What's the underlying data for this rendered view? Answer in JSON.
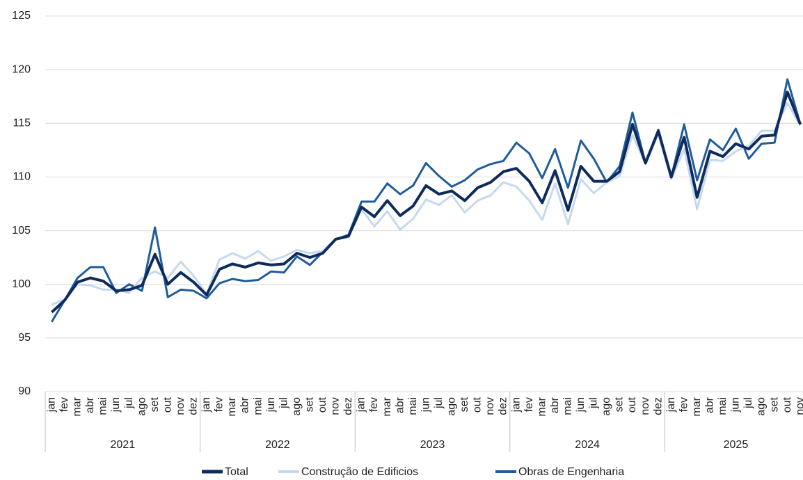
{
  "chart_data": {
    "type": "line",
    "groups": [
      {
        "label": "2021",
        "categories": [
          "jan",
          "fev",
          "mar",
          "abr",
          "mai",
          "jun",
          "jul",
          "ago",
          "set",
          "out",
          "nov",
          "dez"
        ]
      },
      {
        "label": "2022",
        "categories": [
          "jan",
          "fev",
          "mar",
          "abr",
          "mai",
          "jun",
          "jul",
          "ago",
          "set",
          "out",
          "nov",
          "dez"
        ]
      },
      {
        "label": "2023",
        "categories": [
          "jan",
          "fev",
          "mar",
          "abr",
          "mai",
          "jun",
          "jul",
          "ago",
          "set",
          "out",
          "nov",
          "dez"
        ]
      },
      {
        "label": "2024",
        "categories": [
          "jan",
          "fev",
          "mar",
          "abr",
          "mai",
          "jun",
          "jul",
          "ago",
          "set",
          "out",
          "nov",
          "dez"
        ]
      },
      {
        "label": "2025",
        "categories": [
          "jan",
          "fev",
          "mar",
          "abr",
          "mai",
          "jun",
          "jul",
          "ago",
          "set",
          "out",
          "nov"
        ]
      }
    ],
    "series": [
      {
        "name": "Total",
        "color": "#0f2b5e",
        "width": 4,
        "values": [
          97.4,
          98.5,
          100.2,
          100.6,
          100.3,
          99.4,
          99.5,
          99.9,
          102.8,
          100.0,
          101.1,
          100.2,
          99.0,
          101.4,
          101.9,
          101.6,
          102.0,
          101.8,
          101.9,
          102.9,
          102.5,
          102.9,
          104.2,
          104.5,
          107.2,
          106.3,
          107.8,
          106.4,
          107.3,
          109.2,
          108.4,
          108.7,
          107.8,
          109.0,
          109.5,
          110.5,
          110.8,
          109.6,
          107.6,
          110.6,
          106.9,
          111.0,
          109.6,
          109.6,
          110.5,
          114.9,
          111.3,
          114.3,
          110.0,
          113.7,
          108.1,
          112.4,
          111.9,
          113.1,
          112.6,
          113.8,
          113.9,
          117.9,
          114.9
        ]
      },
      {
        "name": "Construção de Edificios",
        "color": "#c5d9ee",
        "width": 3,
        "values": [
          98.1,
          98.6,
          100.0,
          99.9,
          99.5,
          99.5,
          99.2,
          100.6,
          101.2,
          100.6,
          102.1,
          100.8,
          99.1,
          102.3,
          102.9,
          102.4,
          103.1,
          102.2,
          102.6,
          103.2,
          102.9,
          103.1,
          104.2,
          104.4,
          107.0,
          105.4,
          106.8,
          105.1,
          106.1,
          107.9,
          107.4,
          108.3,
          106.7,
          107.8,
          108.3,
          109.5,
          109.1,
          107.8,
          106.0,
          109.4,
          105.6,
          109.8,
          108.5,
          109.5,
          110.1,
          113.9,
          111.2,
          114.0,
          109.8,
          112.6,
          107.0,
          111.6,
          111.5,
          112.4,
          112.9,
          114.3,
          114.3,
          116.9,
          114.8
        ]
      },
      {
        "name": "Obras de Engenharia",
        "color": "#1f5c99",
        "width": 3,
        "values": [
          96.5,
          98.5,
          100.6,
          101.6,
          101.6,
          99.2,
          100.0,
          99.4,
          105.3,
          98.8,
          99.5,
          99.4,
          98.7,
          100.1,
          100.5,
          100.3,
          100.4,
          101.2,
          101.1,
          102.6,
          101.8,
          103.0,
          104.2,
          104.6,
          107.7,
          107.7,
          109.4,
          108.4,
          109.2,
          111.3,
          110.1,
          109.1,
          109.7,
          110.7,
          111.2,
          111.5,
          113.2,
          112.2,
          109.9,
          112.6,
          109.0,
          113.4,
          111.7,
          109.5,
          111.0,
          116.0,
          111.3,
          114.4,
          110.0,
          114.9,
          109.7,
          113.5,
          112.5,
          114.5,
          111.7,
          113.1,
          113.2,
          119.1,
          114.9
        ]
      }
    ],
    "ylim": [
      90,
      125
    ],
    "yticks": [
      90,
      95,
      100,
      105,
      110,
      115,
      120,
      125
    ],
    "grid": true
  }
}
